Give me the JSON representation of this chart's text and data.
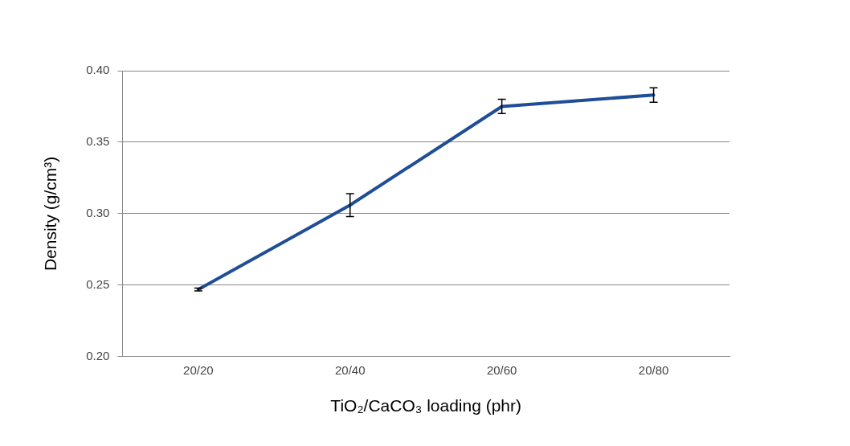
{
  "chart_data": {
    "type": "line",
    "xlabel": "TiO₂/CaCO₃ loading (phr)",
    "ylabel": "Density (g/cm³)",
    "categories": [
      "20/20",
      "20/40",
      "20/60",
      "20/80"
    ],
    "series": [
      {
        "color": "#1f4e96",
        "values": [
          0.247,
          0.306,
          0.375,
          0.383
        ],
        "errors": [
          0.001,
          0.008,
          0.005,
          0.005
        ]
      }
    ],
    "ylim": [
      0.2,
      0.4
    ],
    "yticks": [
      {
        "value": 0.2,
        "label": "0.20"
      },
      {
        "value": 0.25,
        "label": "0.25"
      },
      {
        "value": 0.3,
        "label": "0.30"
      },
      {
        "value": 0.35,
        "label": "0.35"
      },
      {
        "value": 0.4,
        "label": "0.40"
      }
    ],
    "grid": "y",
    "legend": false,
    "marker": "none",
    "line_style": "solid"
  }
}
